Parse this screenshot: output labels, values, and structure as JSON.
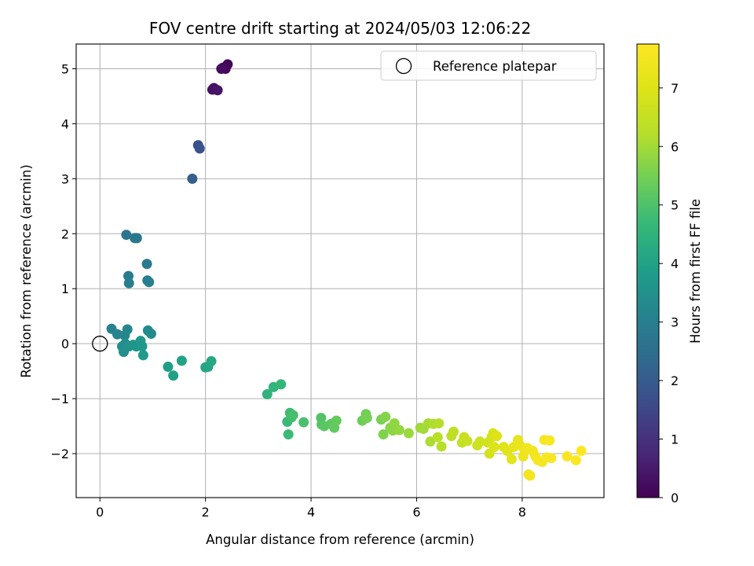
{
  "chart_data": {
    "type": "scatter",
    "title": "FOV centre drift starting at 2024/05/03 12:06:22",
    "xlabel": "Angular distance from reference (arcmin)",
    "ylabel": "Rotation from reference (arcmin)",
    "xlim": [
      -0.45,
      9.55
    ],
    "ylim": [
      -2.8,
      5.45
    ],
    "xticks": [
      0,
      2,
      4,
      6,
      8
    ],
    "yticks": [
      -2,
      -1,
      0,
      1,
      2,
      3,
      4,
      5
    ],
    "grid": true,
    "legend": {
      "position": "top-right",
      "entries": [
        "Reference platepar"
      ]
    },
    "colorbar": {
      "label": "Hours from first FF file",
      "colormap": "viridis",
      "range": [
        0,
        7.75
      ],
      "ticks": [
        0,
        1,
        2,
        3,
        4,
        5,
        6,
        7
      ]
    },
    "reference": {
      "label": "Reference platepar",
      "x": 0,
      "y": 0
    },
    "points_columns": [
      "x",
      "y",
      "hours"
    ],
    "points": [
      [
        2.42,
        5.08,
        0.05
      ],
      [
        2.38,
        5.0,
        0.1
      ],
      [
        2.33,
        5.02,
        0.15
      ],
      [
        2.3,
        5.0,
        0.2
      ],
      [
        2.16,
        4.65,
        0.3
      ],
      [
        2.13,
        4.62,
        0.35
      ],
      [
        2.23,
        4.61,
        0.4
      ],
      [
        1.86,
        3.61,
        1.7
      ],
      [
        1.89,
        3.55,
        1.8
      ],
      [
        1.75,
        3.0,
        2.1
      ],
      [
        0.5,
        1.98,
        2.7
      ],
      [
        0.7,
        1.92,
        2.75
      ],
      [
        0.66,
        1.92,
        2.8
      ],
      [
        0.89,
        1.45,
        2.85
      ],
      [
        0.54,
        1.23,
        2.9
      ],
      [
        0.55,
        1.1,
        2.95
      ],
      [
        0.9,
        1.15,
        3.0
      ],
      [
        0.93,
        1.12,
        3.05
      ],
      [
        0.22,
        0.27,
        3.1
      ],
      [
        0.33,
        0.17,
        3.15
      ],
      [
        0.47,
        0.15,
        3.2
      ],
      [
        0.52,
        0.26,
        3.25
      ],
      [
        0.91,
        0.24,
        3.3
      ],
      [
        0.97,
        0.18,
        3.35
      ],
      [
        0.42,
        -0.05,
        3.4
      ],
      [
        0.48,
        0.0,
        3.45
      ],
      [
        0.45,
        -0.15,
        3.5
      ],
      [
        0.55,
        -0.05,
        3.55
      ],
      [
        0.63,
        -0.02,
        3.6
      ],
      [
        0.69,
        -0.05,
        3.65
      ],
      [
        0.77,
        0.05,
        3.7
      ],
      [
        0.8,
        -0.05,
        3.75
      ],
      [
        0.82,
        -0.21,
        3.8
      ],
      [
        1.29,
        -0.42,
        3.9
      ],
      [
        1.39,
        -0.58,
        3.95
      ],
      [
        1.55,
        -0.31,
        4.0
      ],
      [
        2.0,
        -0.43,
        4.05
      ],
      [
        2.05,
        -0.42,
        4.1
      ],
      [
        2.11,
        -0.32,
        4.15
      ],
      [
        3.17,
        -0.92,
        4.5
      ],
      [
        3.29,
        -0.79,
        4.55
      ],
      [
        3.43,
        -0.74,
        4.6
      ],
      [
        3.55,
        -1.42,
        4.7
      ],
      [
        3.57,
        -1.65,
        4.75
      ],
      [
        3.6,
        -1.26,
        4.8
      ],
      [
        3.63,
        -1.34,
        4.85
      ],
      [
        3.66,
        -1.3,
        4.9
      ],
      [
        3.86,
        -1.43,
        4.95
      ],
      [
        4.19,
        -1.35,
        5.05
      ],
      [
        4.2,
        -1.47,
        5.1
      ],
      [
        4.25,
        -1.5,
        5.15
      ],
      [
        4.38,
        -1.46,
        5.2
      ],
      [
        4.44,
        -1.53,
        5.25
      ],
      [
        4.48,
        -1.4,
        5.3
      ],
      [
        4.97,
        -1.4,
        5.4
      ],
      [
        5.04,
        -1.28,
        5.45
      ],
      [
        5.06,
        -1.35,
        5.5
      ],
      [
        5.33,
        -1.38,
        5.55
      ],
      [
        5.37,
        -1.65,
        5.6
      ],
      [
        5.41,
        -1.33,
        5.65
      ],
      [
        5.5,
        -1.53,
        5.7
      ],
      [
        5.55,
        -1.58,
        5.75
      ],
      [
        5.58,
        -1.45,
        5.8
      ],
      [
        5.67,
        -1.57,
        5.85
      ],
      [
        5.85,
        -1.63,
        5.9
      ],
      [
        6.07,
        -1.53,
        5.95
      ],
      [
        6.13,
        -1.55,
        6.0
      ],
      [
        6.22,
        -1.45,
        6.05
      ],
      [
        6.26,
        -1.78,
        6.1
      ],
      [
        6.32,
        -1.46,
        6.15
      ],
      [
        6.42,
        -1.45,
        6.2
      ],
      [
        6.47,
        -1.87,
        6.25
      ],
      [
        6.4,
        -1.7,
        6.3
      ],
      [
        6.66,
        -1.68,
        6.35
      ],
      [
        6.7,
        -1.6,
        6.4
      ],
      [
        6.86,
        -1.8,
        6.5
      ],
      [
        6.9,
        -1.7,
        6.55
      ],
      [
        6.96,
        -1.77,
        6.6
      ],
      [
        7.15,
        -1.85,
        6.65
      ],
      [
        7.2,
        -1.78,
        6.7
      ],
      [
        7.35,
        -1.8,
        6.75
      ],
      [
        7.38,
        -2.0,
        6.8
      ],
      [
        7.42,
        -1.7,
        6.85
      ],
      [
        7.45,
        -1.63,
        6.9
      ],
      [
        7.47,
        -1.88,
        6.95
      ],
      [
        7.52,
        -1.68,
        7.0
      ],
      [
        7.65,
        -1.88,
        7.05
      ],
      [
        7.72,
        -1.95,
        7.1
      ],
      [
        7.8,
        -2.1,
        7.15
      ],
      [
        7.84,
        -1.88,
        7.2
      ],
      [
        7.92,
        -1.75,
        7.25
      ],
      [
        7.96,
        -1.85,
        7.3
      ],
      [
        8.02,
        -2.05,
        7.35
      ],
      [
        8.05,
        -1.95,
        7.4
      ],
      [
        8.1,
        -1.9,
        7.45
      ],
      [
        8.12,
        -2.38,
        7.45
      ],
      [
        8.15,
        -2.4,
        7.5
      ],
      [
        8.2,
        -1.95,
        7.5
      ],
      [
        8.25,
        -2.05,
        7.5
      ],
      [
        8.3,
        -2.12,
        7.55
      ],
      [
        8.38,
        -2.15,
        7.55
      ],
      [
        8.42,
        -1.75,
        7.55
      ],
      [
        8.46,
        -2.07,
        7.6
      ],
      [
        8.52,
        -1.76,
        7.6
      ],
      [
        8.55,
        -2.08,
        7.6
      ],
      [
        8.85,
        -2.05,
        7.65
      ],
      [
        9.02,
        -2.12,
        7.7
      ],
      [
        9.12,
        -1.95,
        7.75
      ]
    ]
  }
}
